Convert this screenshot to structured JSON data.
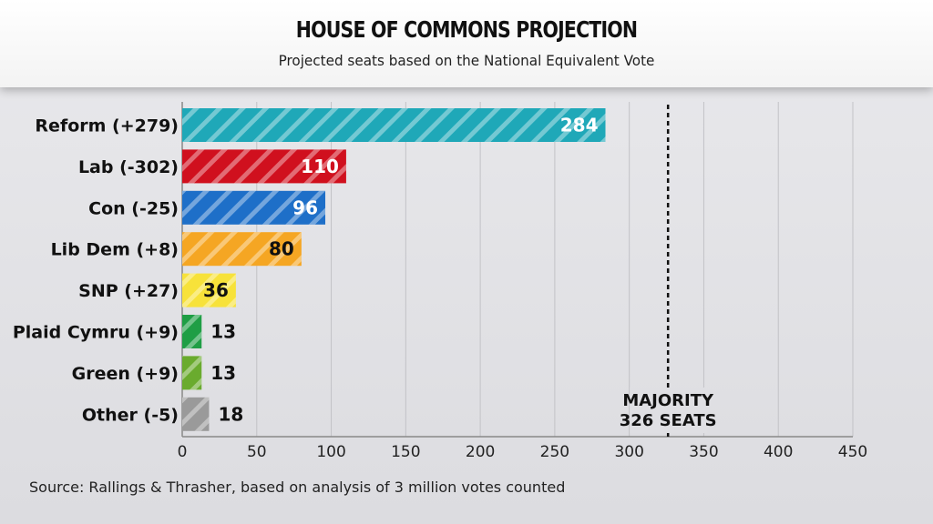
{
  "header": {
    "title": "HOUSE OF COMMONS PROJECTION",
    "subtitle": "Projected seats based on the National Equivalent Vote"
  },
  "source": "Source: Rallings & Thrasher, based on analysis of 3 million votes counted",
  "chart_data": {
    "type": "bar",
    "orientation": "horizontal",
    "title": "HOUSE OF COMMONS PROJECTION",
    "subtitle": "Projected seats based on the National Equivalent Vote",
    "categories": [
      "Reform (+279)",
      "Lab (-302)",
      "Con (-25)",
      "Lib Dem (+8)",
      "SNP (+27)",
      "Plaid Cymru (+9)",
      "Green (+9)",
      "Other (-5)"
    ],
    "values": [
      284,
      110,
      96,
      80,
      36,
      13,
      13,
      18
    ],
    "colors": [
      "#1fa8b8",
      "#d0101e",
      "#1e6fc8",
      "#f5a623",
      "#f7e23a",
      "#1f9e45",
      "#6aab2e",
      "#9a9a9a"
    ],
    "value_label_colors": [
      "#ffffff",
      "#ffffff",
      "#ffffff",
      "#111111",
      "#111111",
      "#111111",
      "#111111",
      "#111111"
    ],
    "bar_pattern": "diagonal-stripes",
    "xlim": [
      0,
      450
    ],
    "xticks": [
      0,
      50,
      100,
      150,
      200,
      250,
      300,
      350,
      400,
      450
    ],
    "grid": "vertical",
    "reference_line": {
      "value": 326,
      "style": "dotted",
      "label_lines": [
        "MAJORITY",
        "326 SEATS"
      ]
    },
    "xlabel": "",
    "ylabel": ""
  }
}
